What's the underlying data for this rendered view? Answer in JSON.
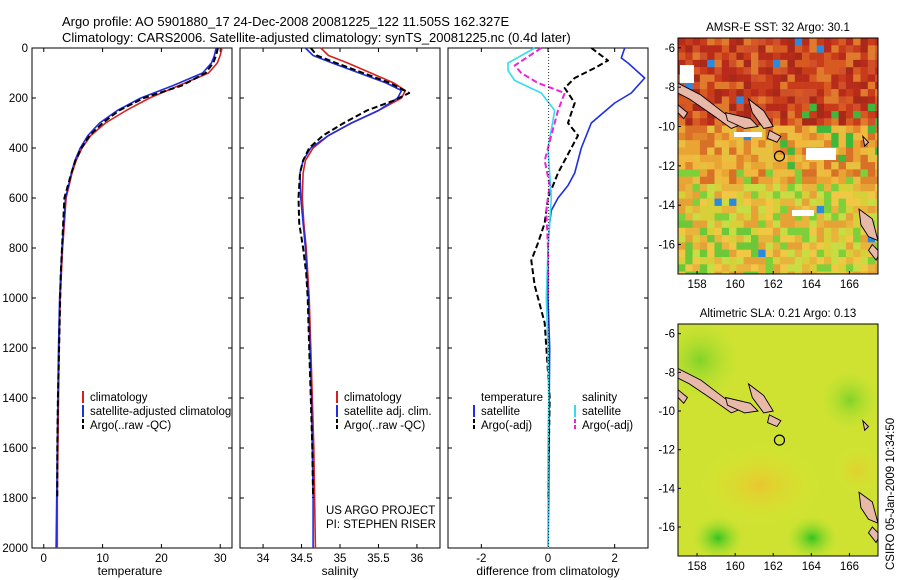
{
  "title": {
    "line1": "Argo profile: AO 5901880_17 24-Dec-2008 20081225_122 11.505S 162.327E",
    "line2": "Climatology: CARS2006. Satellite-adjusted climatology: synTS_20081225.nc (0.4d later)"
  },
  "colors": {
    "red": "#d62020",
    "blue": "#1f2ee0",
    "black": "#000000",
    "cyan": "#33ddee",
    "magenta": "#ee22dd"
  },
  "chart_data": [
    {
      "type": "line",
      "name": "temperature-profile",
      "xlabel": "temperature",
      "xlim": [
        -2,
        32
      ],
      "xticks": [
        "0",
        "10",
        "20",
        "30"
      ],
      "xtick_values": [
        0,
        10,
        20,
        30
      ],
      "ylim": [
        0,
        2000
      ],
      "yticks": [
        "0",
        "200",
        "400",
        "600",
        "800",
        "1000",
        "1200",
        "1400",
        "1600",
        "1800",
        "2000"
      ],
      "ytick_values": [
        0,
        200,
        400,
        600,
        800,
        1000,
        1200,
        1400,
        1600,
        1800,
        2000
      ],
      "legend": [
        "climatology",
        "satellite-adjusted climatolog",
        "Argo(..raw -QC)"
      ],
      "series": [
        {
          "name": "climatology",
          "color": "red",
          "dash": false,
          "x": [
            30.3,
            30.0,
            29.5,
            28.0,
            23.0,
            18.0,
            14.0,
            10.5,
            8.0,
            6.5,
            5.5,
            4.8,
            4.3,
            3.8,
            3.5,
            3.2,
            3.0,
            2.8,
            2.6,
            2.5,
            2.4,
            2.3,
            2.3
          ],
          "y": [
            0,
            30,
            60,
            100,
            150,
            200,
            250,
            300,
            350,
            400,
            450,
            500,
            550,
            600,
            700,
            800,
            900,
            1000,
            1200,
            1400,
            1600,
            1800,
            2000
          ]
        },
        {
          "name": "satellite-adjusted climatology",
          "color": "blue",
          "dash": false,
          "x": [
            29.3,
            29.0,
            28.5,
            27.0,
            22.0,
            16.5,
            12.5,
            9.5,
            7.5,
            6.2,
            5.3,
            4.7,
            4.2,
            3.7,
            3.4,
            3.1,
            2.9,
            2.7,
            2.5,
            2.4,
            2.3,
            2.2,
            2.1
          ],
          "y": [
            0,
            30,
            60,
            100,
            150,
            200,
            250,
            300,
            350,
            400,
            450,
            500,
            550,
            600,
            700,
            800,
            900,
            1000,
            1200,
            1400,
            1600,
            1800,
            2000
          ]
        },
        {
          "name": "Argo",
          "color": "black",
          "dash": true,
          "x": [
            29.6,
            29.3,
            28.8,
            27.5,
            23.5,
            17.0,
            12.8,
            10.0,
            7.8,
            6.4,
            5.4,
            4.7,
            4.1,
            3.5,
            3.3,
            3.1,
            2.9,
            2.8,
            2.6,
            2.4,
            2.3,
            2.3
          ],
          "y": [
            0,
            30,
            60,
            100,
            150,
            200,
            250,
            300,
            350,
            400,
            450,
            500,
            550,
            600,
            700,
            800,
            900,
            1000,
            1200,
            1400,
            1600,
            1800
          ]
        }
      ]
    },
    {
      "type": "line",
      "name": "salinity-profile",
      "xlabel": "salinity",
      "xlim": [
        33.7,
        36.3
      ],
      "xticks": [
        "34",
        "34.5",
        "35",
        "35.5",
        "36"
      ],
      "xtick_values": [
        34,
        34.5,
        35,
        35.5,
        36
      ],
      "ylim": [
        0,
        2000
      ],
      "legend": [
        "climatology",
        "satellite adj. clim.",
        "Argo(..raw -QC)"
      ],
      "annotation": [
        "US ARGO PROJECT",
        "PI: STEPHEN RISER"
      ],
      "series": [
        {
          "name": "climatology",
          "color": "red",
          "dash": false,
          "x": [
            34.75,
            34.85,
            35.1,
            35.4,
            35.7,
            35.85,
            35.8,
            35.5,
            35.15,
            34.85,
            34.65,
            34.55,
            34.52,
            34.51,
            34.53,
            34.56,
            34.58,
            34.6,
            34.62,
            34.64,
            34.66,
            34.67,
            34.68
          ],
          "y": [
            0,
            30,
            60,
            100,
            140,
            170,
            200,
            250,
            300,
            350,
            400,
            450,
            500,
            600,
            700,
            800,
            900,
            1000,
            1200,
            1400,
            1600,
            1800,
            2000
          ]
        },
        {
          "name": "satellite adj. clim.",
          "color": "blue",
          "dash": false,
          "x": [
            34.55,
            34.65,
            34.9,
            35.25,
            35.6,
            35.8,
            35.75,
            35.5,
            35.15,
            34.85,
            34.62,
            34.52,
            34.48,
            34.49,
            34.52,
            34.55,
            34.57,
            34.59,
            34.61,
            34.63,
            34.64,
            34.65,
            34.65
          ],
          "y": [
            0,
            30,
            60,
            100,
            140,
            170,
            200,
            250,
            300,
            350,
            400,
            450,
            500,
            600,
            700,
            800,
            900,
            1000,
            1200,
            1400,
            1600,
            1800,
            2000
          ]
        },
        {
          "name": "Argo",
          "color": "black",
          "dash": true,
          "x": [
            34.62,
            34.7,
            34.95,
            35.3,
            35.65,
            35.9,
            35.7,
            35.35,
            35.05,
            34.78,
            34.6,
            34.52,
            34.48,
            34.46,
            34.47,
            34.52,
            34.56,
            34.58,
            34.6,
            34.62,
            34.64,
            34.65
          ],
          "y": [
            0,
            30,
            60,
            100,
            140,
            180,
            210,
            250,
            300,
            350,
            400,
            450,
            500,
            600,
            700,
            800,
            900,
            1000,
            1200,
            1400,
            1600,
            1800
          ]
        }
      ]
    },
    {
      "type": "line",
      "name": "difference-profile",
      "xlabel": "difference from climatology",
      "xlim": [
        -3,
        3
      ],
      "xticks": [
        "-2",
        "0",
        "2"
      ],
      "xtick_values": [
        -2,
        0,
        2
      ],
      "ylim": [
        0,
        2000
      ],
      "legend_headers": [
        "temperature",
        "salinity"
      ],
      "legend": [
        "satellite",
        "Argo(-adj)",
        "satellite",
        "Argo(-adj)"
      ],
      "series": [
        {
          "name": "temperature satellite",
          "color": "blue",
          "dash": false,
          "x": [
            2.3,
            2.2,
            2.4,
            2.9,
            2.5,
            2.0,
            1.3,
            1.0,
            0.8,
            0.6,
            0.3,
            0.1,
            0.05,
            0.0,
            0.0,
            0.05,
            0.03,
            0.02,
            0.0
          ],
          "y": [
            0,
            40,
            60,
            120,
            180,
            220,
            300,
            400,
            500,
            550,
            600,
            650,
            700,
            800,
            1000,
            1200,
            1500,
            1800,
            2000
          ]
        },
        {
          "name": "temperature Argo(-adj)",
          "color": "black",
          "dash": true,
          "x": [
            1.3,
            1.8,
            1.4,
            0.8,
            0.5,
            0.8,
            0.7,
            0.6,
            0.9,
            0.7,
            0.3,
            0.0,
            -0.1,
            -0.3,
            -0.5,
            -0.4,
            -0.1,
            0.05,
            0.0
          ],
          "y": [
            0,
            50,
            80,
            120,
            160,
            220,
            260,
            300,
            350,
            400,
            500,
            600,
            700,
            780,
            850,
            950,
            1100,
            1400,
            1800
          ]
        },
        {
          "name": "salinity satellite",
          "color": "cyan",
          "dash": false,
          "x": [
            -0.4,
            -1.2,
            -1.2,
            -1.0,
            -0.2,
            0.2,
            0.0,
            0.1,
            0.0,
            -0.05,
            0.0,
            0.02,
            0.0,
            0.0,
            0.0
          ],
          "y": [
            0,
            60,
            90,
            130,
            180,
            250,
            400,
            600,
            800,
            1000,
            1200,
            1400,
            1600,
            1800,
            2000
          ]
        },
        {
          "name": "salinity Argo(-adj)",
          "color": "magenta",
          "dash": true,
          "x": [
            -0.2,
            -1.0,
            -0.8,
            -0.3,
            0.5,
            0.3,
            0.1,
            -0.1,
            0.05,
            -0.05,
            0.0,
            0.0
          ],
          "y": [
            0,
            70,
            100,
            140,
            180,
            250,
            350,
            450,
            550,
            650,
            800,
            1000
          ]
        }
      ]
    },
    {
      "type": "heatmap",
      "name": "sst-map",
      "title": "AMSR-E SST: 32 Argo: 30.1",
      "xlim": [
        157,
        167.5
      ],
      "ylim": [
        -17.5,
        -5.5
      ],
      "xticks": [
        "158",
        "160",
        "162",
        "164",
        "166"
      ],
      "xtick_values": [
        158,
        160,
        162,
        164,
        166
      ],
      "yticks": [
        "-6",
        "-8",
        "-10",
        "-12",
        "-14",
        "-16"
      ],
      "ytick_values": [
        -6,
        -8,
        -10,
        -12,
        -14,
        -16
      ],
      "float_position": {
        "lon": 162.327,
        "lat": -11.505
      }
    },
    {
      "type": "heatmap",
      "name": "sla-map",
      "title": "Altimetric SLA: 0.21 Argo: 0.13",
      "xlim": [
        157,
        167.5
      ],
      "ylim": [
        -17.5,
        -5.5
      ],
      "xticks": [
        "158",
        "160",
        "162",
        "164",
        "166"
      ],
      "xtick_values": [
        158,
        160,
        162,
        164,
        166
      ],
      "yticks": [
        "-6",
        "-8",
        "-10",
        "-12",
        "-14",
        "-16"
      ],
      "ytick_values": [
        -6,
        -8,
        -10,
        -12,
        -14,
        -16
      ],
      "float_position": {
        "lon": 162.327,
        "lat": -11.505
      }
    }
  ],
  "side_label": "CSIRO 05-Jan-2009 10:34:50"
}
